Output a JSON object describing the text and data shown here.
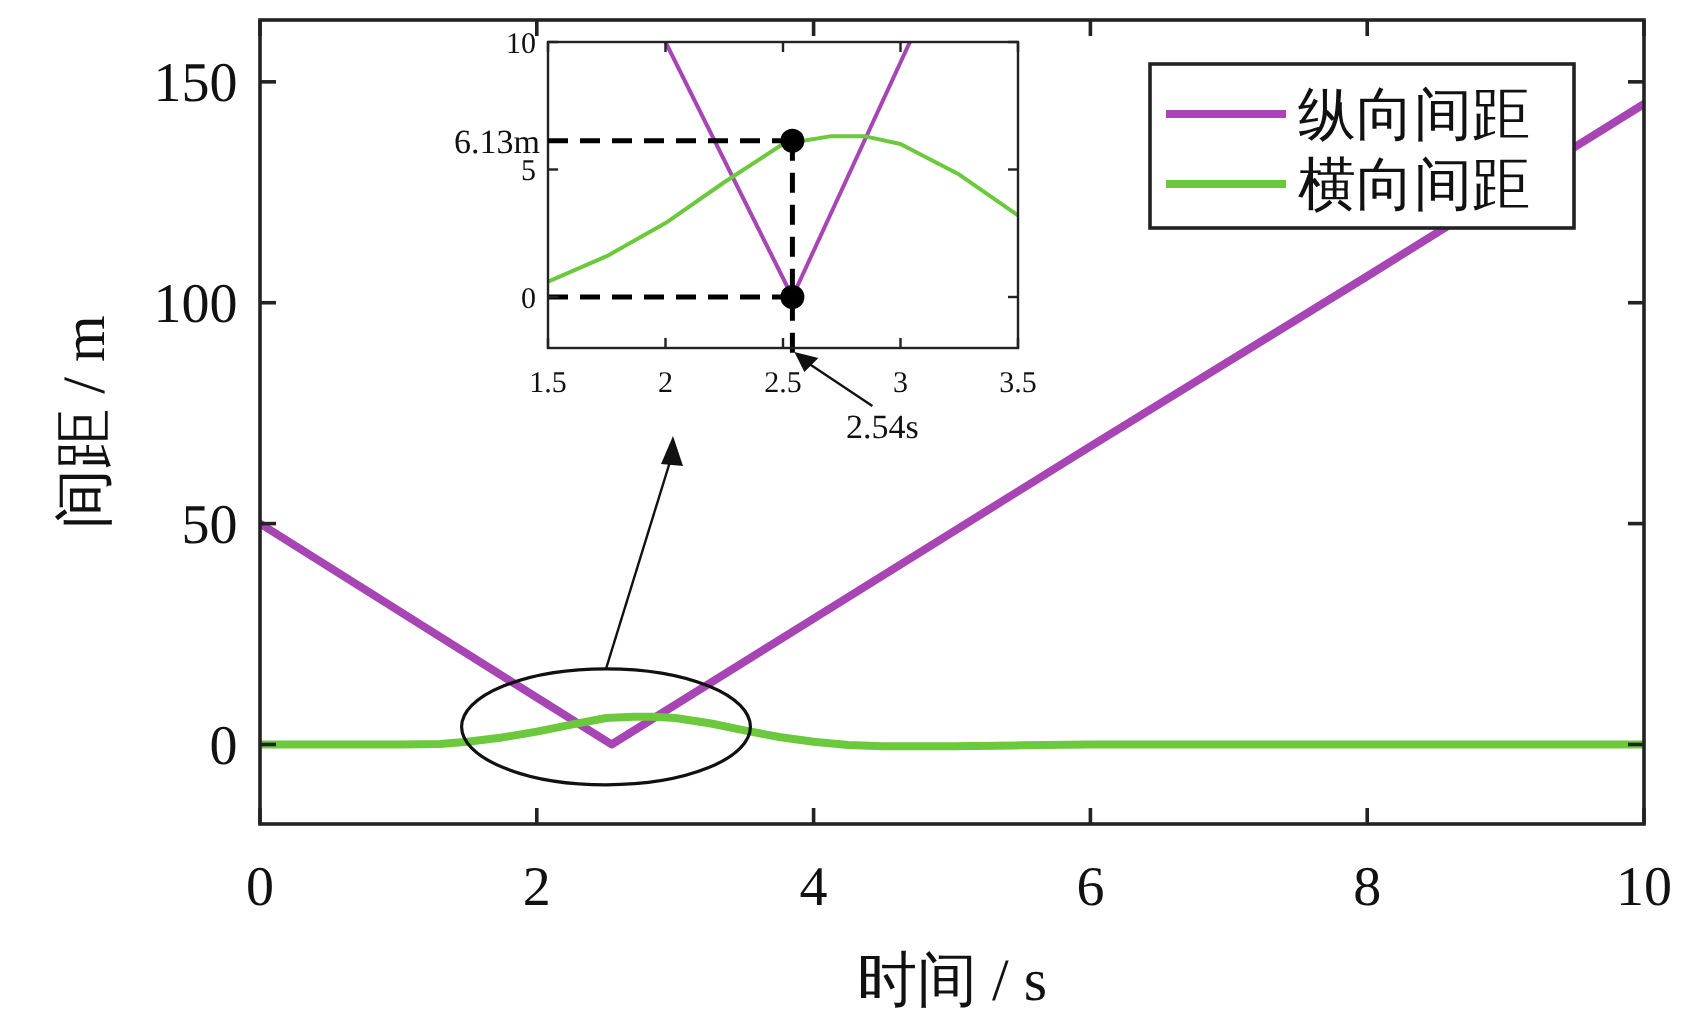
{
  "chart_data": [
    {
      "type": "line",
      "xlabel": "时间 / s",
      "ylabel": "间距 / m",
      "xlim": [
        0,
        10
      ],
      "ylim": [
        -18,
        164
      ],
      "xticks": [
        0,
        2,
        4,
        6,
        8,
        10
      ],
      "yticks": [
        0,
        50,
        100,
        150
      ],
      "legend": "top right",
      "series": [
        {
          "name": "纵向间距",
          "color": "#a845b5",
          "x": [
            0,
            2.54,
            4,
            6,
            8,
            10
          ],
          "values": [
            50,
            0,
            28.5,
            67.5,
            106,
            145
          ]
        },
        {
          "name": "横向间距",
          "color": "#6cc83c",
          "x": [
            0,
            1,
            1.3,
            1.5,
            1.75,
            2,
            2.25,
            2.5,
            2.7,
            2.85,
            3,
            3.25,
            3.5,
            3.75,
            4,
            4.25,
            4.5,
            5,
            5.5,
            6,
            10
          ],
          "values": [
            0,
            0,
            0.1,
            0.6,
            1.6,
            2.9,
            4.5,
            6.0,
            6.3,
            6.3,
            6.0,
            4.8,
            3.2,
            1.7,
            0.6,
            -0.1,
            -0.4,
            -0.4,
            -0.2,
            0,
            0
          ]
        }
      ]
    },
    {
      "type": "line",
      "xlim": [
        1.5,
        3.5
      ],
      "ylim": [
        -2,
        10
      ],
      "xticks": [
        1.5,
        2,
        2.5,
        3,
        3.5
      ],
      "yticks": [
        0,
        5,
        10
      ],
      "series": [
        {
          "color": "#a845b5",
          "x": [
            2.0,
            2.54,
            3.04
          ],
          "values": [
            10,
            0,
            10
          ]
        },
        {
          "color": "#6cc83c",
          "x": [
            1.5,
            1.75,
            2,
            2.25,
            2.5,
            2.7,
            2.85,
            3,
            3.25,
            3.5
          ],
          "values": [
            0.6,
            1.6,
            2.9,
            4.5,
            6.0,
            6.3,
            6.3,
            6.0,
            4.8,
            3.2
          ]
        },
        {
          "type": "scatter",
          "color": "#000000",
          "marker": "circle",
          "x": [
            2.54,
            2.54
          ],
          "values": [
            6.13,
            0
          ]
        }
      ],
      "ref_lines": [
        {
          "axis": "x",
          "value": 2.54,
          "line_style": "dashed",
          "color": "#000000"
        },
        {
          "axis": "y",
          "value": 0,
          "line_style": "dashed",
          "color": "#000000"
        }
      ],
      "annotations": [
        {
          "text": "6.13m",
          "x": 2.54,
          "y": 6.13
        },
        "2.54s"
      ]
    }
  ]
}
